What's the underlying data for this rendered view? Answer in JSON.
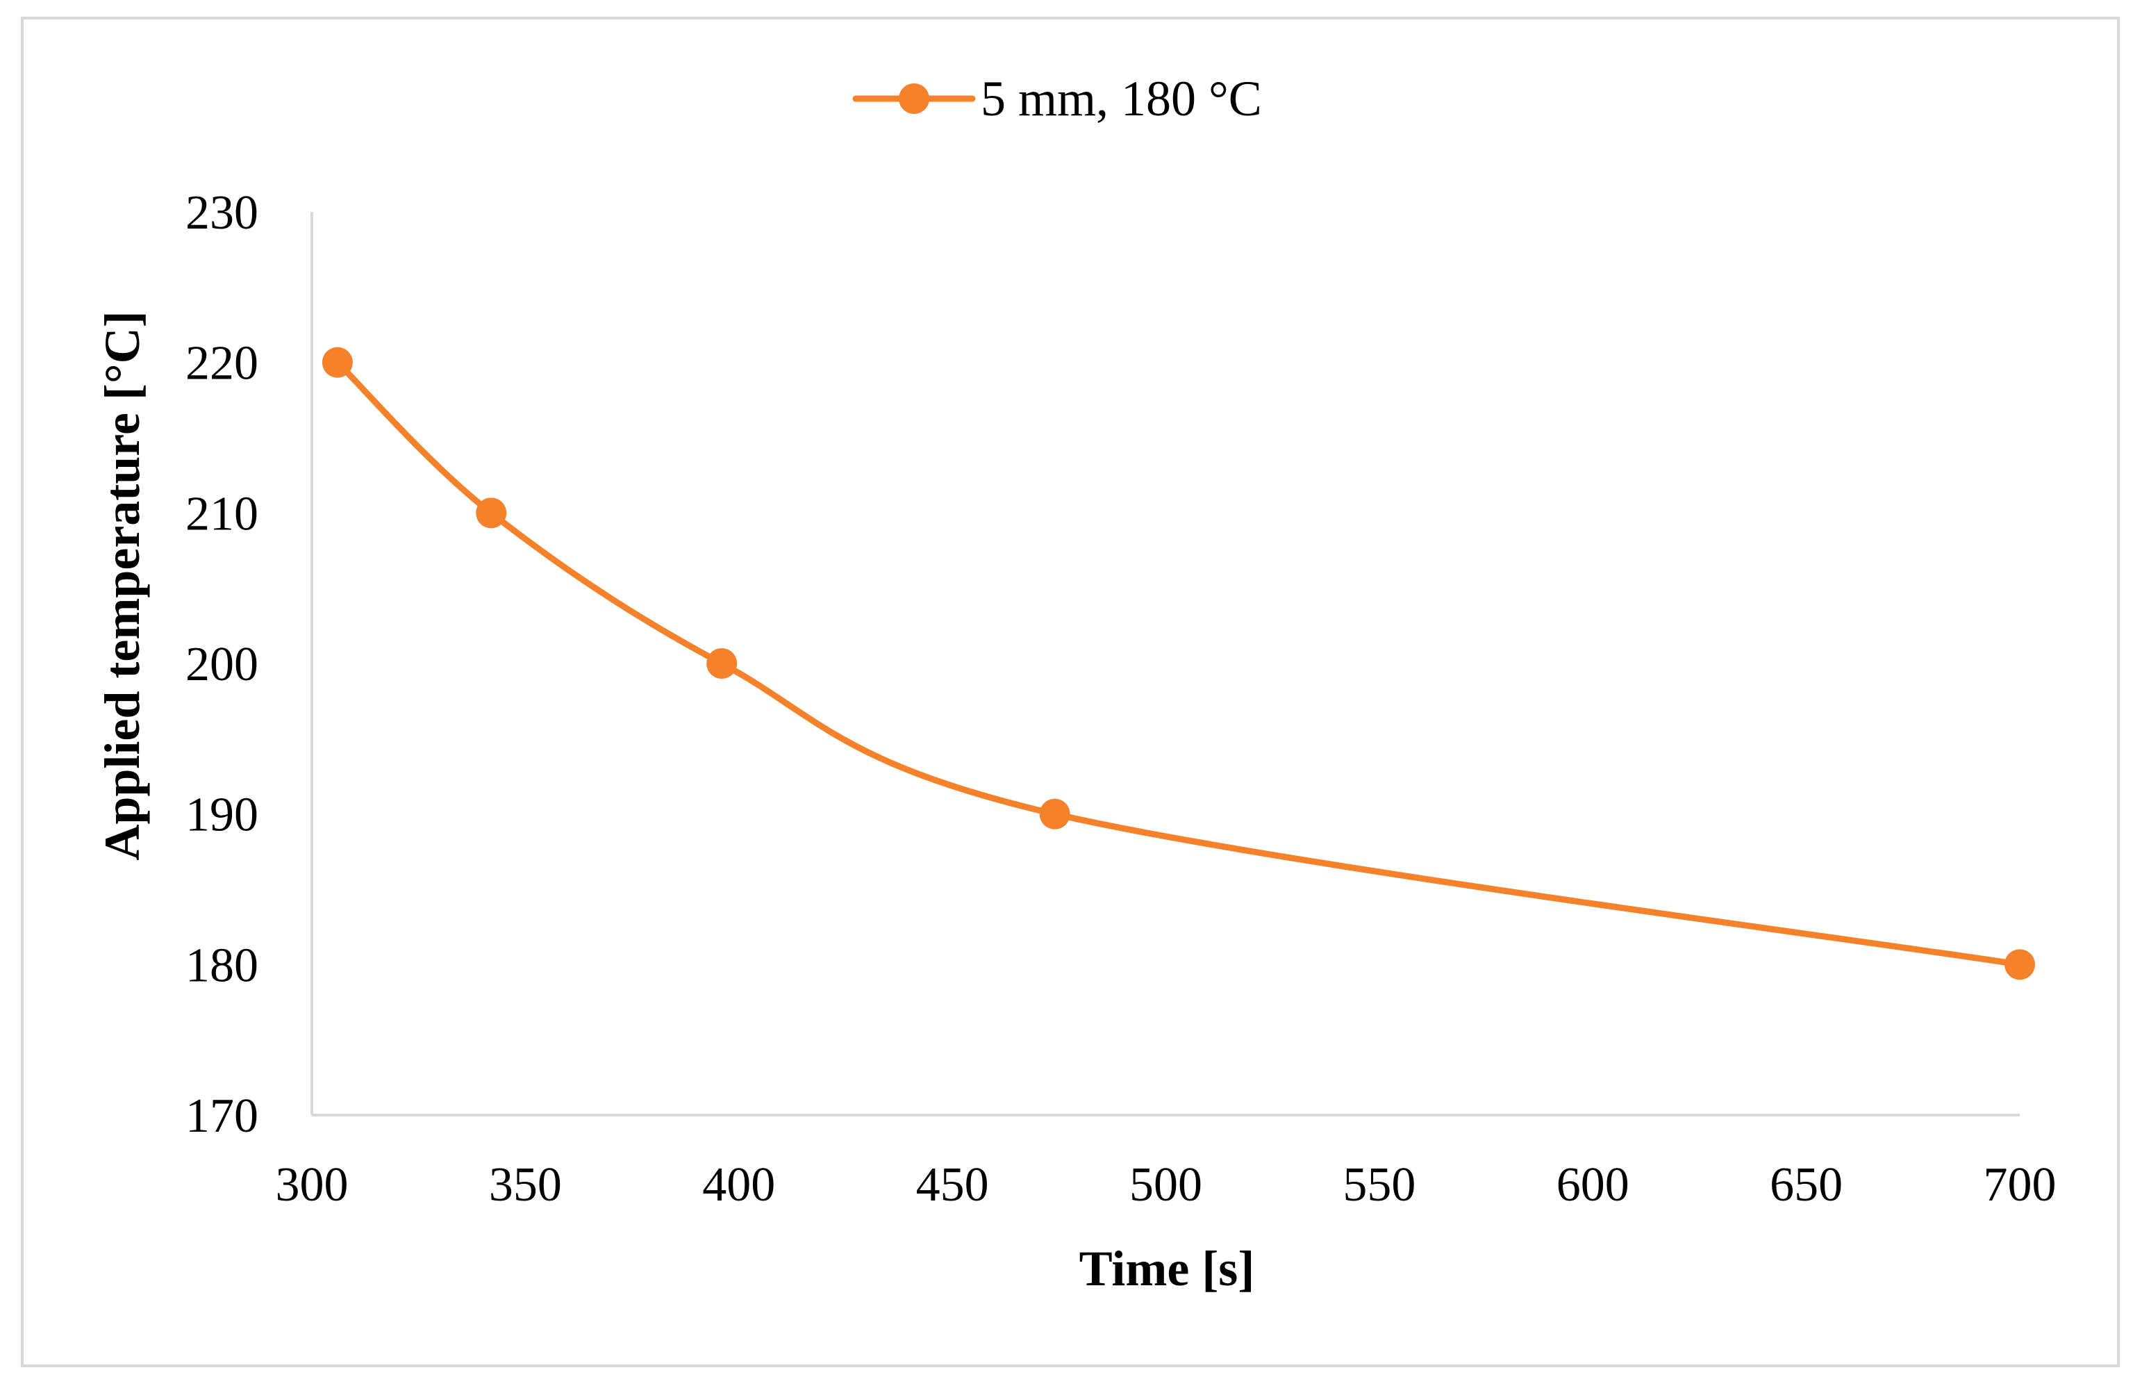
{
  "chart_data": {
    "type": "line",
    "title": "",
    "xlabel": "Time [s]",
    "ylabel": "Applied temperature [°C]",
    "xlim": [
      300,
      700
    ],
    "ylim": [
      170,
      230
    ],
    "xticks": [
      300,
      350,
      400,
      450,
      500,
      550,
      600,
      650,
      700
    ],
    "yticks": [
      170,
      180,
      190,
      200,
      210,
      220,
      230
    ],
    "grid": false,
    "legend_position": "top",
    "series": [
      {
        "name": "5 mm, 180 °C",
        "color": "#f5822a",
        "marker": "circle",
        "smooth": true,
        "points": [
          {
            "x": 306,
            "y": 220
          },
          {
            "x": 342,
            "y": 210
          },
          {
            "x": 396,
            "y": 200
          },
          {
            "x": 474,
            "y": 190
          },
          {
            "x": 700,
            "y": 180
          }
        ]
      }
    ]
  }
}
